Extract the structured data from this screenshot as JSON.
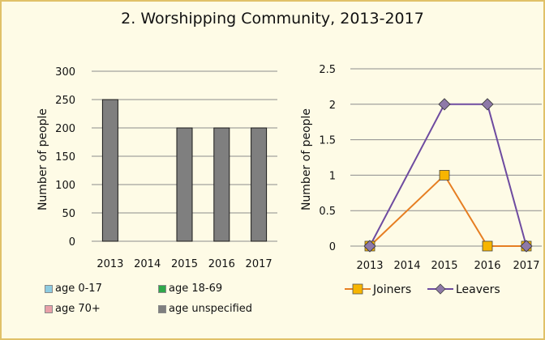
{
  "title": "2. Worshipping Community, 2013-2017",
  "chart_data": [
    {
      "type": "bar",
      "categories": [
        "2013",
        "2014",
        "2015",
        "2016",
        "2017"
      ],
      "series": [
        {
          "name": "age 0-17",
          "values": [
            0,
            0,
            0,
            0,
            0
          ],
          "color": "#8ecbe0"
        },
        {
          "name": "age 18-69",
          "values": [
            0,
            0,
            0,
            0,
            0
          ],
          "color": "#2fa84a"
        },
        {
          "name": "age 70+",
          "values": [
            0,
            0,
            0,
            0,
            0
          ],
          "color": "#e8a0a8"
        },
        {
          "name": "age unspecified",
          "values": [
            250,
            0,
            200,
            200,
            200
          ],
          "color": "#7f7f7f"
        }
      ],
      "ylabel": "Number of people",
      "ylim": [
        0,
        300
      ],
      "yticks": [
        "0",
        "50",
        "100",
        "150",
        "200",
        "250",
        "300"
      ],
      "grid": true,
      "legend": "bottom"
    },
    {
      "type": "line",
      "categories": [
        "2013",
        "2014",
        "2015",
        "2016",
        "2017"
      ],
      "series": [
        {
          "name": "Joiners",
          "values": [
            0,
            null,
            1,
            0,
            0
          ],
          "color": "#e67e22",
          "marker": "square",
          "marker_fill": "#f7b500"
        },
        {
          "name": "Leavers",
          "values": [
            0,
            null,
            2,
            2,
            0
          ],
          "color": "#6e4ba0",
          "marker": "diamond",
          "marker_fill": "#8e79a8"
        }
      ],
      "ylabel": "Number of people",
      "ylim": [
        0,
        2.5
      ],
      "yticks": [
        "0",
        "0.5",
        "1",
        "1.5",
        "2",
        "2.5"
      ],
      "grid": true,
      "legend": "bottom"
    }
  ]
}
